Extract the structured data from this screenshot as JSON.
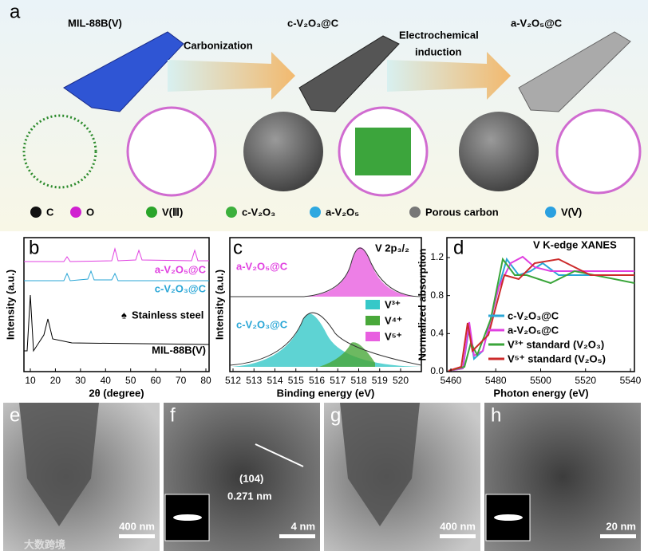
{
  "panel_a": {
    "label": "a",
    "precursor": "MIL-88B(V)",
    "step1": "Carbonization",
    "intermediate": "c-V₂O₃@C",
    "step2_line1": "Electrochemical",
    "step2_line2": "induction",
    "product": "a-V₂O₅@C",
    "legend": [
      "C",
      "O",
      "V(Ⅲ)",
      "c-V₂O₃",
      "a-V₂O₅",
      "Porous carbon",
      "V(Ⅴ)"
    ]
  },
  "panel_b": {
    "label": "b",
    "y_label": "Intensity (a.u.)",
    "x_label": "2θ (degree)",
    "xticks": [
      10,
      20,
      30,
      40,
      50,
      60,
      70,
      80
    ],
    "series": [
      "a-V₂O₅@C",
      "c-V₂O₃@C",
      "MIL-88B(V)"
    ],
    "annotation": "Stainless steel"
  },
  "panel_c": {
    "label": "c",
    "title": "V 2p₃/₂",
    "y_label": "Intensity (a.u.)",
    "x_label": "Binding energy (eV)",
    "xticks": [
      512,
      513,
      514,
      515,
      516,
      517,
      518,
      519,
      520
    ],
    "series": [
      "a-V₂O₅@C",
      "c-V₂O₃@C"
    ],
    "legend": [
      "V³⁺",
      "V⁴⁺",
      "V⁵⁺"
    ]
  },
  "panel_d": {
    "label": "d",
    "title": "V K-edge XANES",
    "y_label": "Normalized absorption",
    "x_label": "Photon energy (eV)",
    "xticks": [
      5460,
      5480,
      5500,
      5520,
      5540
    ],
    "yticks": [
      {
        "value": 0,
        "label": "0.0"
      },
      0.4,
      0.8,
      1.2
    ],
    "legend": [
      "c-V₂O₃@C",
      "a-V₂O₅@C",
      "V³⁺ standard (V₂O₃)",
      "V⁵⁺ standard (V₂O₅)"
    ]
  },
  "micrographs": [
    {
      "label": "e",
      "scale": "400 nm"
    },
    {
      "label": "f",
      "scale": "4 nm",
      "plane": "(104)",
      "spacing": "0.271 nm"
    },
    {
      "label": "g",
      "scale": "400 nm"
    },
    {
      "label": "h",
      "scale": "20 nm"
    }
  ],
  "watermark": "大数跨境"
}
